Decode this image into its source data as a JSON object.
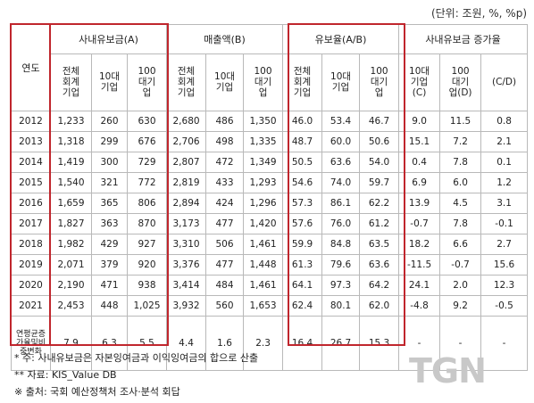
{
  "unit": "(단위: 조원, %, %p)",
  "headers": {
    "year": "연도",
    "group_sanae": "사내유보금(A)",
    "group_sales": "매출액(B)",
    "group_ratio": "유보율(A/B)",
    "group_growth": "사내유보금 증가율",
    "total": "전체회계기업",
    "top10": "10대기업",
    "top100": "100대기업",
    "g_top10": "10대기업(C)",
    "g_top100": "100대기업(D)",
    "g_cd": "(C/D)"
  },
  "rows": [
    [
      "2012",
      "1,233",
      "260",
      "630",
      "2,680",
      "486",
      "1,350",
      "46.0",
      "53.4",
      "46.7",
      "9.0",
      "11.5",
      "0.8"
    ],
    [
      "2013",
      "1,318",
      "299",
      "676",
      "2,706",
      "498",
      "1,335",
      "48.7",
      "60.0",
      "50.6",
      "15.1",
      "7.2",
      "2.1"
    ],
    [
      "2014",
      "1,419",
      "300",
      "729",
      "2,807",
      "472",
      "1,349",
      "50.5",
      "63.6",
      "54.0",
      "0.4",
      "7.8",
      "0.1"
    ],
    [
      "2015",
      "1,540",
      "321",
      "772",
      "2,819",
      "433",
      "1,293",
      "54.6",
      "74.0",
      "59.7",
      "6.9",
      "6.0",
      "1.2"
    ],
    [
      "2016",
      "1,659",
      "365",
      "806",
      "2,894",
      "424",
      "1,296",
      "57.3",
      "86.1",
      "62.2",
      "13.9",
      "4.5",
      "3.1"
    ],
    [
      "2017",
      "1,827",
      "363",
      "870",
      "3,173",
      "477",
      "1,420",
      "57.6",
      "76.0",
      "61.2",
      "-0.7",
      "7.8",
      "-0.1"
    ],
    [
      "2018",
      "1,982",
      "429",
      "927",
      "3,310",
      "506",
      "1,461",
      "59.9",
      "84.8",
      "63.5",
      "18.2",
      "6.6",
      "2.7"
    ],
    [
      "2019",
      "2,071",
      "379",
      "920",
      "3,376",
      "477",
      "1,448",
      "61.3",
      "79.6",
      "63.6",
      "-11.5",
      "-0.7",
      "15.6"
    ],
    [
      "2020",
      "2,190",
      "471",
      "938",
      "3,414",
      "484",
      "1,461",
      "64.1",
      "97.3",
      "64.2",
      "24.1",
      "2.0",
      "12.3"
    ],
    [
      "2021",
      "2,453",
      "448",
      "1,025",
      "3,932",
      "560",
      "1,653",
      "62.4",
      "80.1",
      "62.0",
      "-4.8",
      "9.2",
      "-0.5"
    ]
  ],
  "last_row": {
    "label": "연평균증가율및비중변화",
    "values": [
      "7.9",
      "6.3",
      "5.5",
      "4.4",
      "1.6",
      "2.3",
      "16.4",
      "26.7",
      "15.3",
      "-",
      "-",
      "-"
    ]
  },
  "notes": {
    "n1": "*   주: 사내유보금은 자본잉여금과 이익잉여금의 합으로 산출",
    "n2": "**  자료: KIS_Value DB",
    "n3": "※ 출처: 국회 예산정책처 조사·분석 회답"
  },
  "watermark": "TGN",
  "colors": {
    "highlight_box": "#c0262d",
    "grid": "#b9b9b9"
  }
}
